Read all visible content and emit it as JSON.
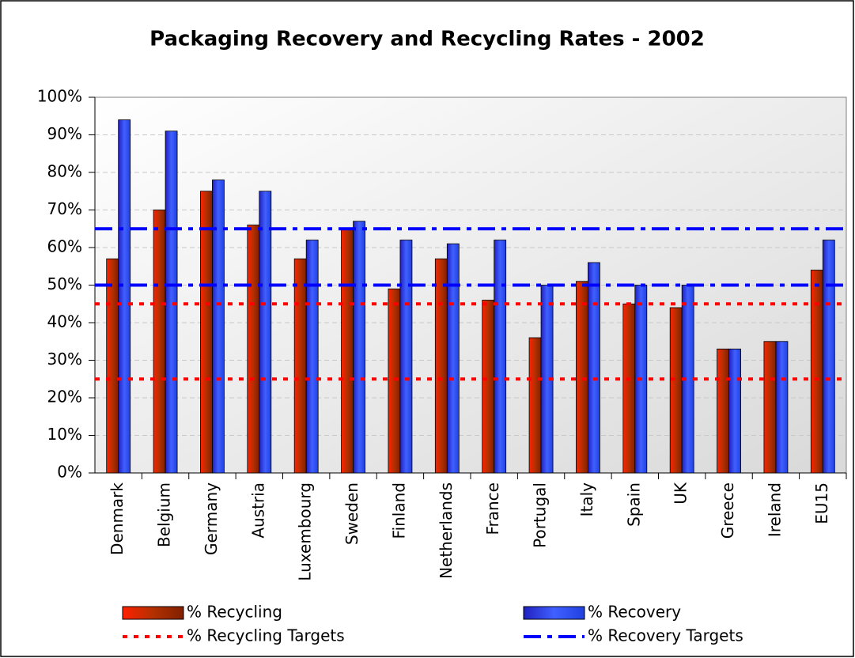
{
  "chart_data": {
    "type": "bar",
    "title": "Packaging Recovery and Recycling Rates - 2002",
    "categories": [
      "Denmark",
      "Belgium",
      "Germany",
      "Austria",
      "Luxembourg",
      "Sweden",
      "Finland",
      "Netherlands",
      "France",
      "Portugal",
      "Italy",
      "Spain",
      "UK",
      "Greece",
      "Ireland",
      "EU15"
    ],
    "series": [
      {
        "name": "% Recycling",
        "color": "#993300",
        "values": [
          57,
          70,
          75,
          66,
          57,
          65,
          49,
          57,
          46,
          36,
          51,
          45,
          44,
          33,
          35,
          54
        ]
      },
      {
        "name": "% Recovery",
        "color": "#3333ff",
        "values": [
          94,
          91,
          78,
          75,
          62,
          67,
          62,
          61,
          62,
          50,
          56,
          50,
          50,
          33,
          35,
          62
        ]
      }
    ],
    "reference_lines": [
      {
        "name": "% Recycling Targets",
        "color": "#ff0000",
        "values": [
          25,
          45
        ]
      },
      {
        "name": "% Recovery Targets",
        "color": "#0000ff",
        "values": [
          50,
          65
        ]
      }
    ],
    "ylim": [
      0,
      100
    ],
    "yticks": [
      {
        "value": 0,
        "label": "0%"
      },
      {
        "value": 10,
        "label": "10%"
      },
      {
        "value": 20,
        "label": "20%"
      },
      {
        "value": 30,
        "label": "30%"
      },
      {
        "value": 40,
        "label": "40%"
      },
      {
        "value": 50,
        "label": "50%"
      },
      {
        "value": 60,
        "label": "60%"
      },
      {
        "value": 70,
        "label": "70%"
      },
      {
        "value": 80,
        "label": "80%"
      },
      {
        "value": 90,
        "label": "90%"
      },
      {
        "value": 100,
        "label": "100%"
      }
    ],
    "grid": true,
    "legend": "bottom"
  }
}
